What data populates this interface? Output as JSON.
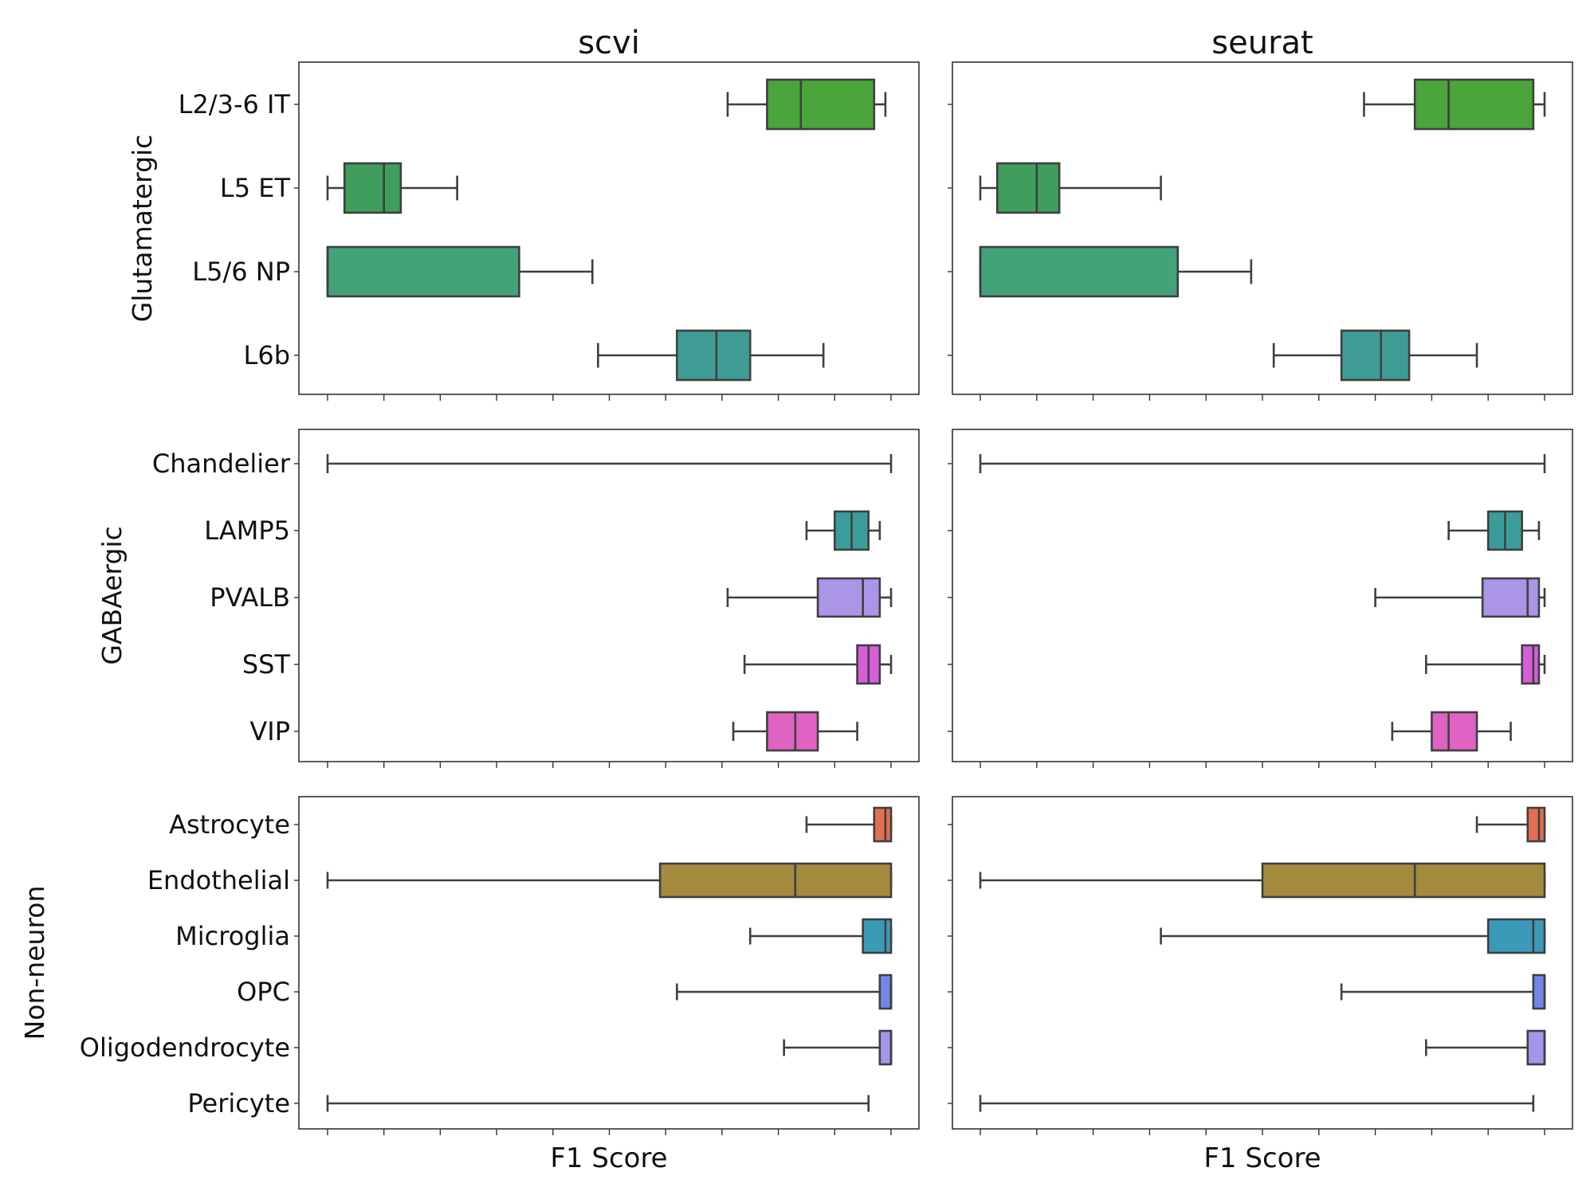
{
  "chart_data": {
    "type": "box",
    "orientation": "horizontal",
    "xlabel": "F1 Score",
    "xlim": [
      0,
      1
    ],
    "x_tick_labels_shown": false,
    "grid": false,
    "panels": [
      {
        "name": "scvi",
        "xlabel": "F1 Score"
      },
      {
        "name": "seurat",
        "xlabel": "F1 Score"
      }
    ],
    "groups": [
      {
        "name": "Glutamatergic",
        "categories": [
          "L2/3-6 IT",
          "L5 ET",
          "L5/6 NP",
          "L6b"
        ],
        "colors": [
          "#4aa53a",
          "#3f9e5e",
          "#43a27a",
          "#3e9c95"
        ],
        "scvi": [
          {
            "whislo": 0.71,
            "q1": 0.78,
            "med": 0.84,
            "q3": 0.97,
            "whishi": 0.99
          },
          {
            "whislo": 0.0,
            "q1": 0.03,
            "med": 0.1,
            "q3": 0.13,
            "whishi": 0.23
          },
          {
            "whislo": 0.0,
            "q1": 0.0,
            "med": 0.0,
            "q3": 0.34,
            "whishi": 0.47
          },
          {
            "whislo": 0.48,
            "q1": 0.62,
            "med": 0.69,
            "q3": 0.75,
            "whishi": 0.88
          }
        ],
        "seurat": [
          {
            "whislo": 0.68,
            "q1": 0.77,
            "med": 0.83,
            "q3": 0.98,
            "whishi": 1.0
          },
          {
            "whislo": 0.0,
            "q1": 0.03,
            "med": 0.1,
            "q3": 0.14,
            "whishi": 0.32
          },
          {
            "whislo": 0.0,
            "q1": 0.0,
            "med": 0.0,
            "q3": 0.35,
            "whishi": 0.48
          },
          {
            "whislo": 0.52,
            "q1": 0.64,
            "med": 0.71,
            "q3": 0.76,
            "whishi": 0.88
          }
        ]
      },
      {
        "name": "GABAergic",
        "categories": [
          "Chandelier",
          "LAMP5",
          "PVALB",
          "SST",
          "VIP"
        ],
        "colors": [
          "#3e9c95",
          "#3a9d9a",
          "#ab95e6",
          "#d65ed8",
          "#e062c2"
        ],
        "scvi": [
          {
            "whislo": 0.0,
            "q1": 0.0,
            "med": 0.0,
            "q3": 0.0,
            "whishi": 1.0
          },
          {
            "whislo": 0.85,
            "q1": 0.9,
            "med": 0.93,
            "q3": 0.96,
            "whishi": 0.98
          },
          {
            "whislo": 0.71,
            "q1": 0.87,
            "med": 0.95,
            "q3": 0.98,
            "whishi": 1.0
          },
          {
            "whislo": 0.74,
            "q1": 0.94,
            "med": 0.96,
            "q3": 0.98,
            "whishi": 1.0
          },
          {
            "whislo": 0.72,
            "q1": 0.78,
            "med": 0.83,
            "q3": 0.87,
            "whishi": 0.94
          }
        ],
        "seurat": [
          {
            "whislo": 0.0,
            "q1": 0.0,
            "med": 0.0,
            "q3": 0.0,
            "whishi": 1.0
          },
          {
            "whislo": 0.83,
            "q1": 0.9,
            "med": 0.93,
            "q3": 0.96,
            "whishi": 0.99
          },
          {
            "whislo": 0.7,
            "q1": 0.89,
            "med": 0.97,
            "q3": 0.99,
            "whishi": 1.0
          },
          {
            "whislo": 0.79,
            "q1": 0.96,
            "med": 0.98,
            "q3": 0.99,
            "whishi": 1.0
          },
          {
            "whislo": 0.73,
            "q1": 0.8,
            "med": 0.83,
            "q3": 0.88,
            "whishi": 0.94
          }
        ]
      },
      {
        "name": "Non-neuron",
        "categories": [
          "Astrocyte",
          "Endothelial",
          "Microglia",
          "OPC",
          "Oligodendrocyte",
          "Pericyte"
        ],
        "colors": [
          "#e36e53",
          "#a38a3d",
          "#3c9ab9",
          "#7686e8",
          "#a495ec",
          "#999999"
        ],
        "scvi": [
          {
            "whislo": 0.85,
            "q1": 0.97,
            "med": 0.99,
            "q3": 1.0,
            "whishi": 1.0
          },
          {
            "whislo": 0.0,
            "q1": 0.59,
            "med": 0.83,
            "q3": 1.0,
            "whishi": 1.0
          },
          {
            "whislo": 0.75,
            "q1": 0.95,
            "med": 0.99,
            "q3": 1.0,
            "whishi": 1.0
          },
          {
            "whislo": 0.62,
            "q1": 0.98,
            "med": 1.0,
            "q3": 1.0,
            "whishi": 1.0
          },
          {
            "whislo": 0.81,
            "q1": 0.98,
            "med": 1.0,
            "q3": 1.0,
            "whishi": 1.0
          },
          {
            "whislo": 0.0,
            "q1": 0.0,
            "med": 0.0,
            "q3": 0.0,
            "whishi": 0.96
          }
        ],
        "seurat": [
          {
            "whislo": 0.88,
            "q1": 0.97,
            "med": 0.99,
            "q3": 1.0,
            "whishi": 1.0
          },
          {
            "whislo": 0.0,
            "q1": 0.5,
            "med": 0.77,
            "q3": 1.0,
            "whishi": 1.0
          },
          {
            "whislo": 0.32,
            "q1": 0.9,
            "med": 0.98,
            "q3": 1.0,
            "whishi": 1.0
          },
          {
            "whislo": 0.64,
            "q1": 0.98,
            "med": 1.0,
            "q3": 1.0,
            "whishi": 1.0
          },
          {
            "whislo": 0.79,
            "q1": 0.97,
            "med": 1.0,
            "q3": 1.0,
            "whishi": 1.0
          },
          {
            "whislo": 0.0,
            "q1": 0.0,
            "med": 0.0,
            "q3": 0.0,
            "whishi": 0.98
          }
        ]
      }
    ]
  }
}
